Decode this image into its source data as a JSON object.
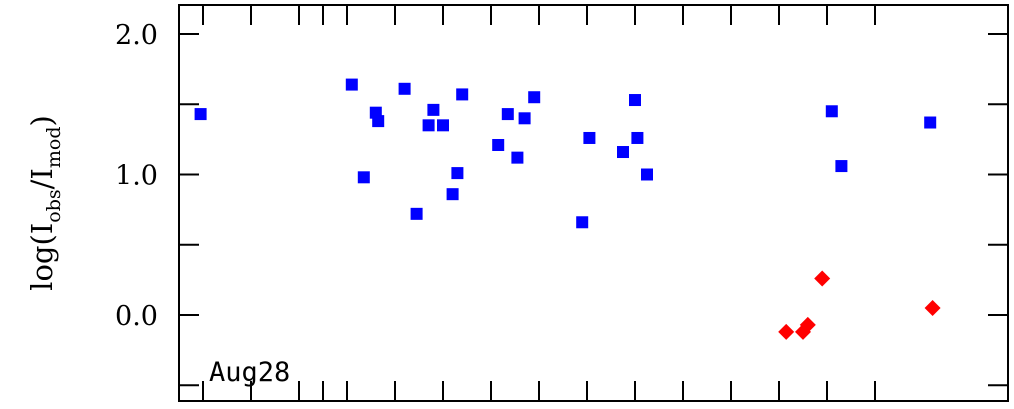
{
  "chart_data": {
    "type": "scatter",
    "title": "",
    "panel_label": "Aug28",
    "xlabel": "",
    "ylabel": {
      "base": "log(I",
      "sub1": "obs",
      "mid": "/I",
      "sub2": "mod",
      "end": ")"
    },
    "xlim": [
      0,
      30
    ],
    "ylim": [
      -0.6,
      2.2
    ],
    "yticks": [
      -0.5,
      0.0,
      0.5,
      1.0,
      1.5,
      2.0
    ],
    "ytick_labels": [
      {
        "value": 2.0,
        "label": "2.0"
      },
      {
        "value": 1.0,
        "label": "1.0"
      },
      {
        "value": 0.0,
        "label": "0.0"
      }
    ],
    "xticks": [
      1,
      3,
      5,
      6,
      7,
      9,
      11,
      13,
      15,
      17,
      19,
      21,
      23,
      25,
      27,
      29
    ],
    "grid": false,
    "series": [
      {
        "name": "squares",
        "marker": "square",
        "color": "#0000ff",
        "points": [
          {
            "x": 0.9,
            "y": 1.43
          },
          {
            "x": 7.2,
            "y": 1.64
          },
          {
            "x": 7.7,
            "y": 0.98
          },
          {
            "x": 8.2,
            "y": 1.44
          },
          {
            "x": 8.3,
            "y": 1.38
          },
          {
            "x": 9.4,
            "y": 1.61
          },
          {
            "x": 9.9,
            "y": 0.72
          },
          {
            "x": 10.4,
            "y": 1.35
          },
          {
            "x": 10.6,
            "y": 1.46
          },
          {
            "x": 11.0,
            "y": 1.35
          },
          {
            "x": 11.4,
            "y": 0.86
          },
          {
            "x": 11.6,
            "y": 1.01
          },
          {
            "x": 11.8,
            "y": 1.57
          },
          {
            "x": 13.3,
            "y": 1.21
          },
          {
            "x": 13.7,
            "y": 1.43
          },
          {
            "x": 14.1,
            "y": 1.12
          },
          {
            "x": 14.4,
            "y": 1.4
          },
          {
            "x": 14.8,
            "y": 1.55
          },
          {
            "x": 16.8,
            "y": 0.66
          },
          {
            "x": 17.1,
            "y": 1.26
          },
          {
            "x": 18.5,
            "y": 1.16
          },
          {
            "x": 19.0,
            "y": 1.53
          },
          {
            "x": 19.1,
            "y": 1.26
          },
          {
            "x": 19.5,
            "y": 1.0
          },
          {
            "x": 27.2,
            "y": 1.45
          },
          {
            "x": 27.6,
            "y": 1.06
          },
          {
            "x": 31.3,
            "y": 1.37
          }
        ]
      },
      {
        "name": "diamonds",
        "marker": "diamond",
        "color": "#ff0000",
        "points": [
          {
            "x": 25.3,
            "y": -0.12
          },
          {
            "x": 26.0,
            "y": -0.12
          },
          {
            "x": 26.2,
            "y": -0.07
          },
          {
            "x": 26.8,
            "y": 0.26
          },
          {
            "x": 31.4,
            "y": 0.05
          }
        ]
      }
    ]
  }
}
